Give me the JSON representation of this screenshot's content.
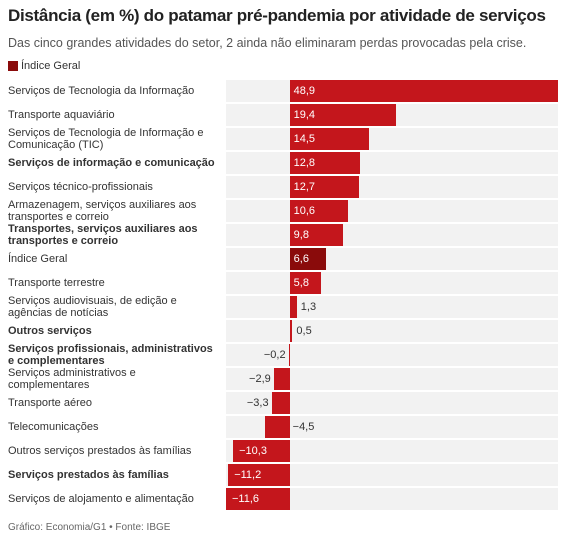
{
  "chart_data": {
    "type": "bar",
    "orientation": "horizontal",
    "title": "Distância (em %) do patamar pré-pandemia por atividade de serviços",
    "subtitle": "Das cinco grandes atividades do setor, 2 ainda não eliminaram perdas provocadas pela crise.",
    "legend": {
      "name": "Índice Geral",
      "color": "#8a0b0b"
    },
    "source": "Gráfico: Economia/G1 • Fonte: IBGE",
    "categories": [
      "Serviços de Tecnologia da Informação",
      "Transporte aquaviário",
      "Serviços de Tecnologia de Informação e Comunicação (TIC)",
      "Serviços de informação e comunicação",
      "Serviços técnico-profissionais",
      "Armazenagem, serviços auxiliares aos transportes e correio",
      "Transportes, serviços auxiliares aos transportes e correio",
      "Índice Geral",
      "Transporte terrestre",
      "Serviços audiovisuais, de edição e agências de notícias",
      "Outros serviços",
      "Serviços profissionais, administrativos e complementares",
      "Serviços administrativos e complementares",
      "Transporte aéreo",
      "Telecomunicações",
      "Outros serviços prestados às famílias",
      "Serviços prestados às famílias",
      "Serviços de alojamento e alimentação"
    ],
    "bold": [
      false,
      false,
      false,
      true,
      false,
      false,
      true,
      false,
      false,
      false,
      true,
      true,
      false,
      false,
      false,
      false,
      true,
      false
    ],
    "values": [
      48.9,
      19.4,
      14.5,
      12.8,
      12.7,
      10.6,
      9.8,
      6.6,
      5.8,
      1.3,
      0.5,
      -0.2,
      -2.9,
      -3.3,
      -4.5,
      -10.3,
      -11.2,
      -11.6
    ],
    "value_labels": [
      "48,9",
      "19,4",
      "14,5",
      "12,8",
      "12,7",
      "10,6",
      "9,8",
      "6,6",
      "5,8",
      "1,3",
      "0,5",
      "−0,2",
      "−2,9",
      "−3,3",
      "−4,5",
      "−10,3",
      "−11,2",
      "−11,6"
    ],
    "colors": [
      "#c4161c",
      "#c4161c",
      "#c4161c",
      "#c4161c",
      "#c4161c",
      "#c4161c",
      "#c4161c",
      "#8a0b0b",
      "#c4161c",
      "#c4161c",
      "#c4161c",
      "#c4161c",
      "#c4161c",
      "#c4161c",
      "#c4161c",
      "#c4161c",
      "#c4161c",
      "#c4161c"
    ]
  }
}
